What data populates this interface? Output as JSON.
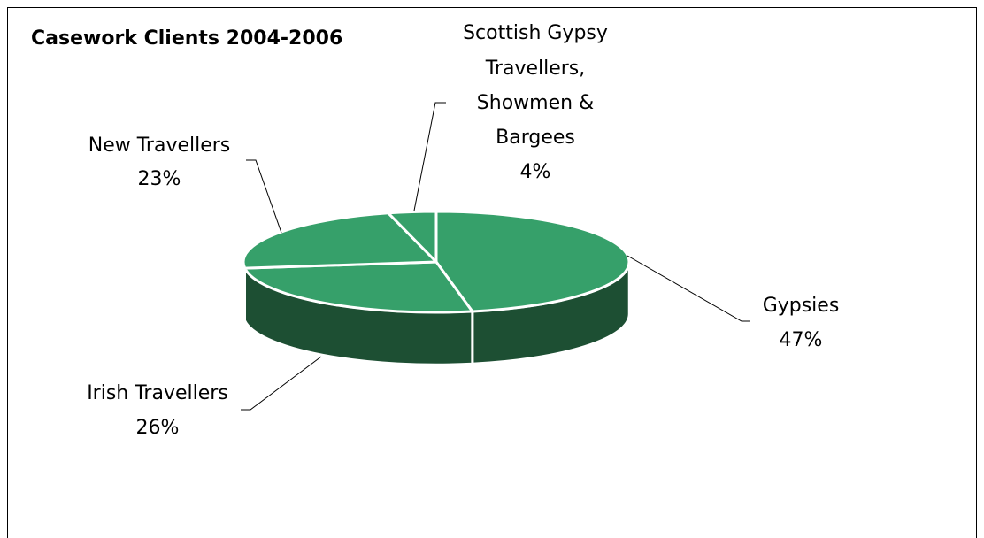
{
  "chart_data": {
    "type": "pie",
    "title": "Casework Clients 2004-2006",
    "three_d": true,
    "colors": {
      "top": "#36a06a",
      "side": "#1d4f33",
      "edge": "#ffffff",
      "leader": "#000000"
    },
    "slices": [
      {
        "label": "Gypsies",
        "percent_label": "47%",
        "value": 47
      },
      {
        "label": "Irish Travellers",
        "percent_label": "26%",
        "value": 26
      },
      {
        "label": "New Travellers",
        "percent_label": "23%",
        "value": 23
      },
      {
        "label": "Scottish Gypsy Travellers, Showmen & Bargees",
        "percent_label": "4%",
        "value": 4
      }
    ],
    "label_lines": {
      "gypsies": [
        "Gypsies"
      ],
      "irish": [
        "Irish Travellers"
      ],
      "new": [
        "New Travellers"
      ],
      "scottish": [
        "Scottish Gypsy",
        "Travellers,",
        "Showmen &",
        "Bargees"
      ]
    }
  }
}
